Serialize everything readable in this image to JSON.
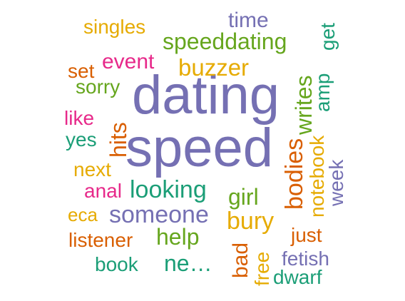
{
  "wordcloud": {
    "words": {
      "dating": "dating",
      "speed": "speed",
      "speeddating": "speeddating",
      "buzzer": "buzzer",
      "time": "time",
      "singles": "singles",
      "event": "event",
      "set": "set",
      "sorry": "sorry",
      "like": "like",
      "yes": "yes",
      "next": "next",
      "anal": "anal",
      "looking": "looking",
      "girl": "girl",
      "eca": "eca",
      "someone": "someone",
      "bury": "bury",
      "listener": "listener",
      "help": "help",
      "just": "just",
      "book": "book",
      "ne": "ne…",
      "fetish": "fetish",
      "dwarf": "dwarf",
      "get": "get",
      "writes": "writes",
      "amp": "amp",
      "hits": "hits",
      "bodies": "bodies",
      "notebook": "notebook",
      "week": "week",
      "bad": "bad",
      "free": "free"
    },
    "colors": {
      "teal": "#1b9e77",
      "orange": "#d95f02",
      "purple": "#7570b3",
      "pink": "#e7298a",
      "green": "#66a61e",
      "gold": "#e6ab02",
      "brown": "#a6761d"
    }
  }
}
